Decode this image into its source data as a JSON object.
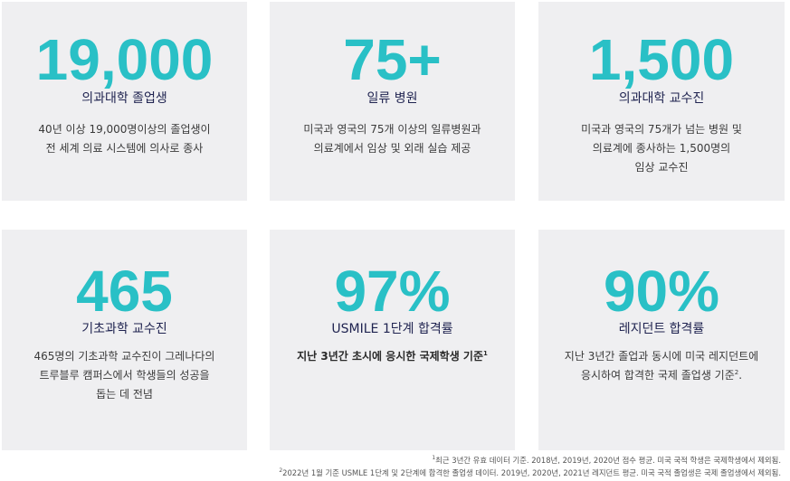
{
  "stats": [
    {
      "value": "19,000",
      "label": "의과대학 졸업생",
      "lines": [
        "40년 이상 19,000명이상의 졸업생이",
        "전 세계 의료 시스템에 의사로 종사"
      ]
    },
    {
      "value": "75+",
      "label": "일류 병원",
      "lines": [
        "미국과 영국의 75개 이상의 일류병원과",
        "의료계에서 임상 및 외래 실습 제공"
      ]
    },
    {
      "value": "1,500",
      "label": "의과대학 교수진",
      "lines": [
        "미국과 영국의 75개가 넘는 병원 및",
        "의료계에 종사하는 1,500명의",
        "임상 교수진"
      ]
    },
    {
      "value": "465",
      "label": "기초과학 교수진",
      "lines": [
        "465명의 기초과학 교수진이 그레나다의",
        "트루블루 캠퍼스에서 학생들의 성공을",
        "돕는 데 전념"
      ]
    },
    {
      "value": "97%",
      "label": "USMILE 1단계 합격률",
      "lines": [
        "지난 3년간 초시에 응시한 국제학생 기준"
      ],
      "sup": "1"
    },
    {
      "value": "90%",
      "label": "레지던트 합격률",
      "lines": [
        "지난 3년간 졸업과 동시에 미국 레지던트에",
        "응시하여 합격한 국제 졸업생 기준"
      ],
      "sup": "2",
      "tail": "."
    }
  ],
  "footnotes": [
    {
      "marker": "1",
      "text": "최근 3년간 유효 데이터 기준. 2018년, 2019년, 2020년 점수 평균. 미국 국적 학생은 국제학생에서 제외됨."
    },
    {
      "marker": "2",
      "text": "2022년 1월 기준 USMLE 1단계 및 2단계에 합격한 졸업생 데이터. 2019년, 2020년, 2021년 레지던트 평균. 미국 국적 졸업생은 국제 졸업생에서 제외됨."
    }
  ],
  "colors": {
    "accent": "#29c0c6",
    "label": "#1f2350",
    "card_bg": "#efeff1"
  }
}
